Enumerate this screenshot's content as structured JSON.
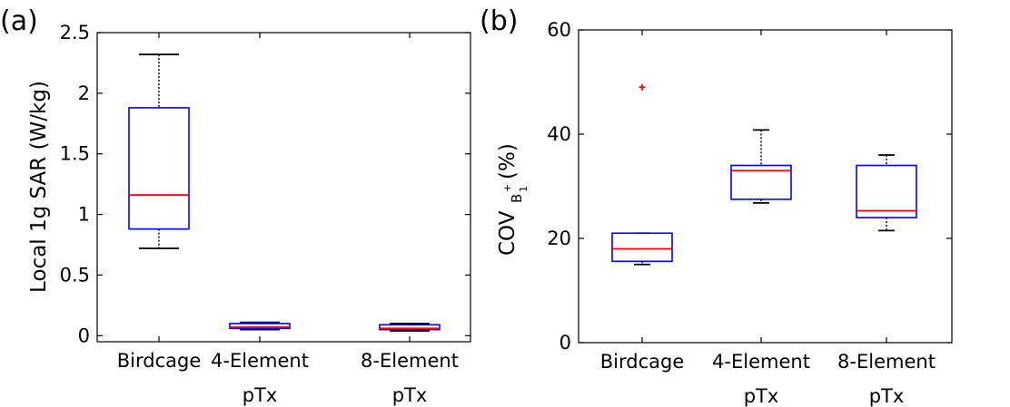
{
  "chart_data": [
    {
      "panel": "(a)",
      "type": "box",
      "ylabel": "Local 1g SAR (W/kg)",
      "ylim": [
        -0.05,
        2.5
      ],
      "yticks": [
        "0",
        "0.5",
        "1",
        "1.5",
        "2",
        "2.5"
      ],
      "categories": [
        [
          "Birdcage"
        ],
        [
          "4-Element",
          "pTx"
        ],
        [
          "8-Element",
          "pTx"
        ]
      ],
      "boxes": [
        {
          "whisker_low": 0.72,
          "q1": 0.88,
          "median": 1.16,
          "q3": 1.88,
          "whisker_high": 2.32,
          "outliers": []
        },
        {
          "whisker_low": 0.05,
          "q1": 0.06,
          "median": 0.07,
          "q3": 0.1,
          "whisker_high": 0.11,
          "outliers": []
        },
        {
          "whisker_low": 0.04,
          "q1": 0.05,
          "median": 0.06,
          "q3": 0.09,
          "whisker_high": 0.1,
          "outliers": []
        }
      ],
      "grid": false
    },
    {
      "panel": "(b)",
      "type": "box",
      "ylabel": "COV",
      "ylabel_sub": "B",
      "ylabel_sup": "+",
      "ylabel_subsub": "1",
      "ylabel_suffix": "(%)",
      "ylim": [
        0,
        60
      ],
      "yticks": [
        "0",
        "20",
        "40",
        "60"
      ],
      "categories": [
        [
          "Birdcage"
        ],
        [
          "4-Element",
          "pTx"
        ],
        [
          "8-Element",
          "pTx"
        ]
      ],
      "boxes": [
        {
          "whisker_low": 15.0,
          "q1": 15.6,
          "median": 18.0,
          "q3": 21.0,
          "whisker_high": 21.0,
          "outliers": [
            49.0
          ]
        },
        {
          "whisker_low": 26.8,
          "q1": 27.5,
          "median": 33.0,
          "q3": 34.0,
          "whisker_high": 40.8,
          "outliers": []
        },
        {
          "whisker_low": 21.5,
          "q1": 24.0,
          "median": 25.3,
          "q3": 34.0,
          "whisker_high": 36.0,
          "outliers": []
        }
      ],
      "grid": false
    }
  ],
  "colors": {
    "box": "#0000ff",
    "median": "#ff0000",
    "whisker": "#000000",
    "outlier": "#ff0000"
  }
}
